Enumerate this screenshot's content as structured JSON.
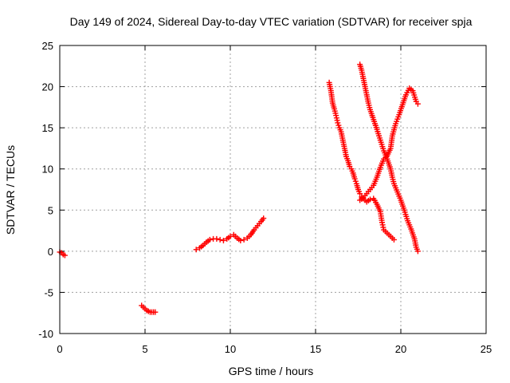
{
  "chart_data": {
    "type": "scatter",
    "title": "Day 149 of 2024, Sidereal Day-to-day VTEC variation (SDTVAR) for receiver spja",
    "xlabel": "GPS time / hours",
    "ylabel": "SDTVAR / TECUs",
    "xlim": [
      0,
      25
    ],
    "ylim": [
      -10,
      25
    ],
    "xticks": [
      "0",
      "5",
      "10",
      "15",
      "20",
      "25"
    ],
    "yticks": [
      "-10",
      "-5",
      "0",
      "5",
      "10",
      "15",
      "20",
      "25"
    ],
    "grid": true,
    "marker": "plus",
    "marker_color": "#ff0000",
    "series": [
      {
        "segments": [
          [
            [
              0.0,
              -0.1
            ],
            [
              0.1,
              -0.2
            ],
            [
              0.2,
              -0.4
            ],
            [
              0.3,
              -0.5
            ]
          ],
          [
            [
              4.8,
              -6.6
            ],
            [
              4.9,
              -6.8
            ],
            [
              5.0,
              -7.0
            ],
            [
              5.1,
              -7.2
            ],
            [
              5.2,
              -7.3
            ],
            [
              5.3,
              -7.4
            ],
            [
              5.4,
              -7.4
            ],
            [
              5.5,
              -7.4
            ],
            [
              5.6,
              -7.4
            ]
          ],
          [
            [
              8.0,
              0.2
            ],
            [
              8.2,
              0.4
            ],
            [
              8.4,
              0.7
            ],
            [
              8.6,
              1.1
            ],
            [
              8.8,
              1.4
            ],
            [
              9.0,
              1.5
            ],
            [
              9.2,
              1.5
            ],
            [
              9.4,
              1.4
            ],
            [
              9.6,
              1.3
            ],
            [
              9.8,
              1.5
            ],
            [
              10.0,
              1.8
            ],
            [
              10.2,
              2.0
            ],
            [
              10.4,
              1.6
            ],
            [
              10.6,
              1.3
            ],
            [
              10.8,
              1.4
            ],
            [
              11.0,
              1.6
            ],
            [
              11.2,
              2.0
            ],
            [
              11.4,
              2.6
            ],
            [
              11.6,
              3.1
            ],
            [
              11.8,
              3.6
            ],
            [
              11.95,
              4.0
            ]
          ],
          [
            [
              15.8,
              20.5
            ],
            [
              15.9,
              19.5
            ],
            [
              16.0,
              18.0
            ],
            [
              16.1,
              17.3
            ],
            [
              16.2,
              16.5
            ],
            [
              16.3,
              15.6
            ],
            [
              16.4,
              15.0
            ],
            [
              16.5,
              14.5
            ],
            [
              16.6,
              13.5
            ],
            [
              16.7,
              12.5
            ],
            [
              16.8,
              11.5
            ],
            [
              16.9,
              11.0
            ],
            [
              17.0,
              10.3
            ],
            [
              17.1,
              10.0
            ],
            [
              17.2,
              9.5
            ],
            [
              17.3,
              8.8
            ],
            [
              17.4,
              8.2
            ],
            [
              17.5,
              7.5
            ],
            [
              17.6,
              7.0
            ],
            [
              17.7,
              6.6
            ],
            [
              17.8,
              6.4
            ],
            [
              17.9,
              6.2
            ],
            [
              18.0,
              6.0
            ],
            [
              18.2,
              6.3
            ],
            [
              18.4,
              6.4
            ],
            [
              18.6,
              5.7
            ],
            [
              18.8,
              4.8
            ],
            [
              18.9,
              3.5
            ],
            [
              19.0,
              2.6
            ],
            [
              19.2,
              2.2
            ],
            [
              19.4,
              1.8
            ],
            [
              19.6,
              1.4
            ]
          ],
          [
            [
              17.6,
              22.7
            ],
            [
              17.7,
              22.0
            ],
            [
              17.8,
              21.0
            ],
            [
              17.9,
              20.0
            ],
            [
              18.0,
              19.0
            ],
            [
              18.1,
              18.0
            ],
            [
              18.2,
              17.2
            ],
            [
              18.4,
              16.0
            ],
            [
              18.6,
              14.8
            ],
            [
              18.8,
              13.5
            ],
            [
              19.0,
              12.2
            ],
            [
              19.2,
              11.2
            ],
            [
              19.4,
              10.0
            ],
            [
              19.5,
              9.0
            ],
            [
              19.6,
              8.2
            ],
            [
              19.8,
              7.2
            ],
            [
              20.0,
              6.2
            ],
            [
              20.2,
              5.0
            ],
            [
              20.4,
              3.7
            ],
            [
              20.6,
              2.7
            ],
            [
              20.8,
              1.5
            ],
            [
              20.9,
              0.5
            ],
            [
              21.0,
              0.0
            ]
          ],
          [
            [
              17.6,
              6.2
            ],
            [
              17.8,
              6.5
            ],
            [
              18.0,
              7.0
            ],
            [
              18.2,
              7.5
            ],
            [
              18.4,
              8.0
            ],
            [
              18.6,
              9.0
            ],
            [
              18.8,
              10.2
            ],
            [
              19.0,
              11.2
            ],
            [
              19.2,
              11.6
            ],
            [
              19.4,
              12.5
            ],
            [
              19.5,
              14.0
            ],
            [
              19.7,
              15.5
            ],
            [
              19.9,
              16.6
            ],
            [
              20.1,
              17.8
            ],
            [
              20.3,
              19.0
            ],
            [
              20.5,
              19.8
            ],
            [
              20.7,
              19.5
            ],
            [
              20.9,
              18.2
            ],
            [
              21.0,
              17.9
            ]
          ]
        ]
      }
    ]
  }
}
